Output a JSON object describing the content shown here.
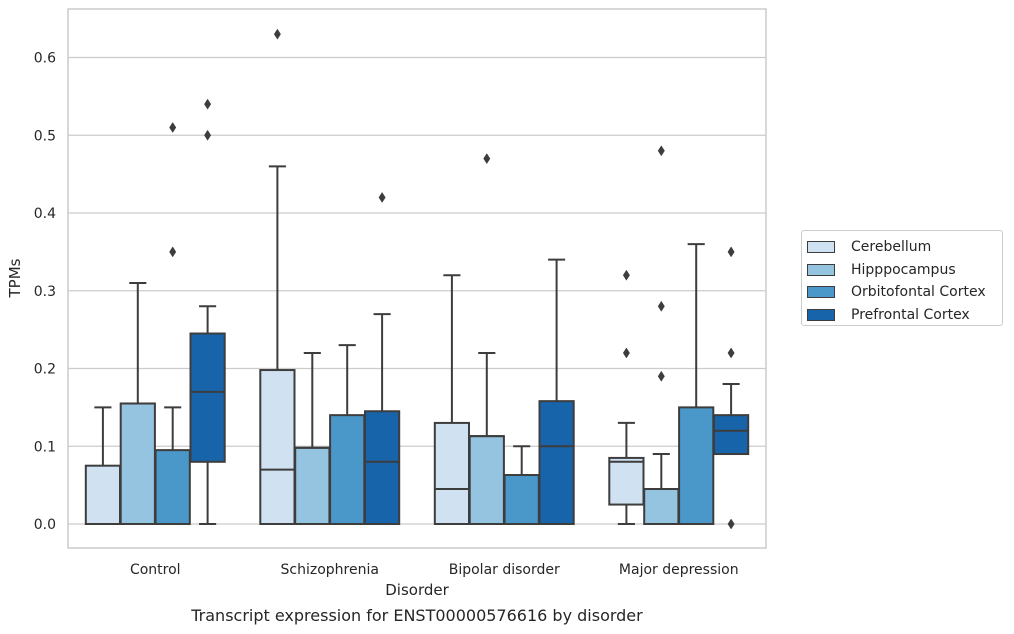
{
  "chart_data": {
    "type": "box",
    "title": "Transcript expression for ENST00000576616 by disorder",
    "xlabel": "Disorder",
    "ylabel": "TPMs",
    "ylim": [
      -0.03,
      0.66
    ],
    "yticks": [
      "0.0",
      "0.1",
      "0.2",
      "0.3",
      "0.4",
      "0.5",
      "0.6"
    ],
    "ytick_values": [
      0,
      0.1,
      0.2,
      0.3,
      0.4,
      0.5,
      0.6
    ],
    "grid": true,
    "legend_position": "right",
    "categories": [
      "Control",
      "Schizophrenia",
      "Bipolar disorder",
      "Major depression"
    ],
    "series": [
      {
        "name": "Cerebellum",
        "color": "#d0e1f2",
        "boxes": [
          {
            "whislo": 0,
            "q1": 0,
            "med": 0,
            "q3": 0.075,
            "whishi": 0.15,
            "fliers": []
          },
          {
            "whislo": 0,
            "q1": 0,
            "med": 0.07,
            "q3": 0.198,
            "whishi": 0.46,
            "fliers": [
              0.63
            ]
          },
          {
            "whislo": 0,
            "q1": 0,
            "med": 0.045,
            "q3": 0.13,
            "whishi": 0.32,
            "fliers": []
          },
          {
            "whislo": 0,
            "q1": 0.025,
            "med": 0.08,
            "q3": 0.085,
            "whishi": 0.13,
            "fliers": [
              0.22,
              0.32
            ]
          }
        ]
      },
      {
        "name": "Hipppocampus",
        "color": "#94c4df",
        "boxes": [
          {
            "whislo": 0,
            "q1": 0,
            "med": 0.155,
            "q3": 0.155,
            "whishi": 0.31,
            "fliers": []
          },
          {
            "whislo": 0,
            "q1": 0,
            "med": 0.098,
            "q3": 0.098,
            "whishi": 0.22,
            "fliers": []
          },
          {
            "whislo": 0,
            "q1": 0,
            "med": 0.113,
            "q3": 0.113,
            "whishi": 0.22,
            "fliers": [
              0.47
            ]
          },
          {
            "whislo": 0,
            "q1": 0,
            "med": 0.045,
            "q3": 0.045,
            "whishi": 0.09,
            "fliers": [
              0.19,
              0.28,
              0.48
            ]
          }
        ]
      },
      {
        "name": "Orbitofontal Cortex",
        "color": "#4a98c9",
        "boxes": [
          {
            "whislo": 0,
            "q1": 0,
            "med": 0,
            "q3": 0.095,
            "whishi": 0.15,
            "fliers": [
              0.35,
              0.51
            ]
          },
          {
            "whislo": 0,
            "q1": 0,
            "med": 0,
            "q3": 0.14,
            "whishi": 0.23,
            "fliers": []
          },
          {
            "whislo": 0,
            "q1": 0,
            "med": 0,
            "q3": 0.063,
            "whishi": 0.1,
            "fliers": []
          },
          {
            "whislo": 0,
            "q1": 0,
            "med": 0,
            "q3": 0.15,
            "whishi": 0.36,
            "fliers": []
          }
        ]
      },
      {
        "name": "Prefrontal Cortex",
        "color": "#1764ab",
        "boxes": [
          {
            "whislo": 0,
            "q1": 0.08,
            "med": 0.17,
            "q3": 0.245,
            "whishi": 0.28,
            "fliers": [
              0.5,
              0.54
            ]
          },
          {
            "whislo": 0,
            "q1": 0,
            "med": 0.08,
            "q3": 0.145,
            "whishi": 0.27,
            "fliers": [
              0.42
            ]
          },
          {
            "whislo": 0,
            "q1": 0,
            "med": 0.1,
            "q3": 0.158,
            "whishi": 0.34,
            "fliers": []
          },
          {
            "whislo": 0.09,
            "q1": 0.09,
            "med": 0.12,
            "q3": 0.14,
            "whishi": 0.18,
            "fliers": [
              0,
              0.22,
              0.35
            ]
          }
        ]
      }
    ]
  }
}
